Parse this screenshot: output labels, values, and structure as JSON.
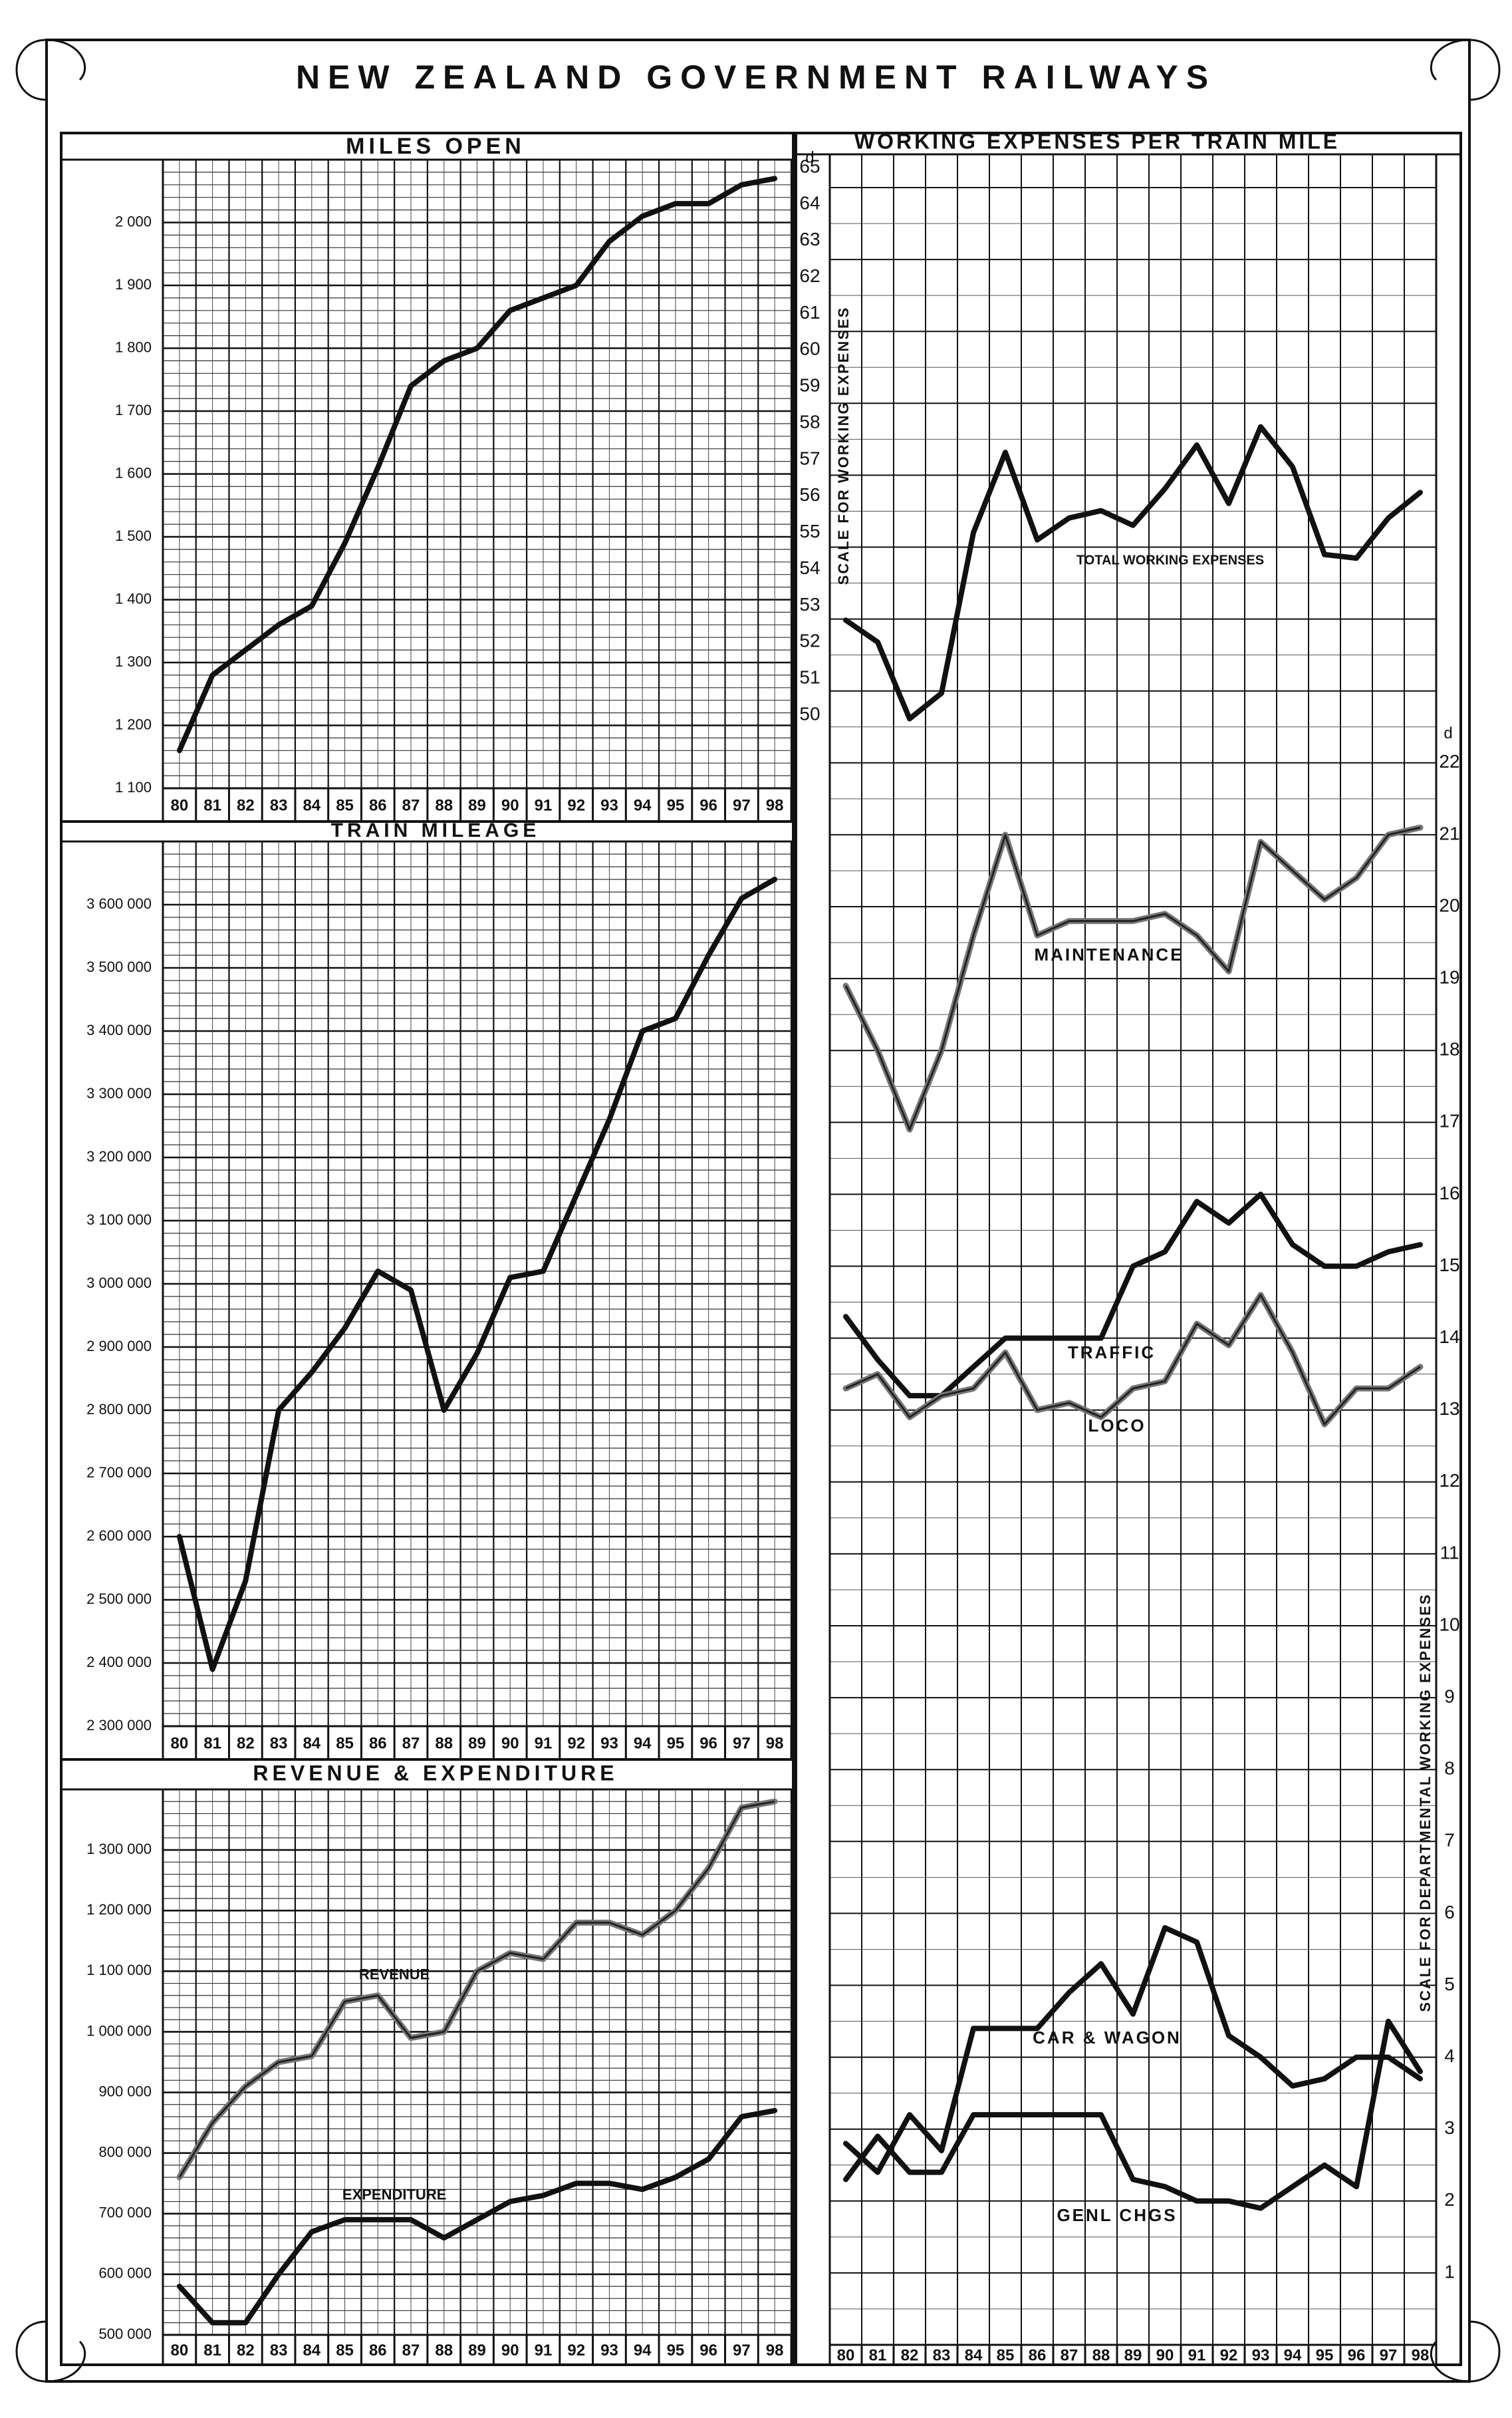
{
  "page_title": "NEW ZEALAND GOVERNMENT RAILWAYS",
  "years": [
    "80",
    "81",
    "82",
    "83",
    "84",
    "85",
    "86",
    "87",
    "88",
    "89",
    "90",
    "91",
    "92",
    "93",
    "94",
    "95",
    "96",
    "97",
    "98"
  ],
  "chart_data": [
    {
      "id": "miles_open",
      "type": "line",
      "title": "MILES OPEN",
      "ylim": [
        1100,
        2100
      ],
      "y_ticks": [
        1100,
        1200,
        1300,
        1400,
        1500,
        1600,
        1700,
        1800,
        1900,
        2000
      ],
      "y_tick_labels": [
        "1 100",
        "1 200",
        "1 300",
        "1 400",
        "1 500",
        "1 600",
        "1 700",
        "1 800",
        "1 900",
        "2 000"
      ],
      "series": [
        {
          "values": [
            1160,
            1280,
            1320,
            1360,
            1390,
            1490,
            1610,
            1740,
            1780,
            1800,
            1860,
            1880,
            1900,
            1970,
            2010,
            2030,
            2030,
            2060,
            2070
          ]
        }
      ]
    },
    {
      "id": "train_mileage",
      "type": "line",
      "title": "TRAIN MILEAGE",
      "ylim": [
        2300000,
        3700000
      ],
      "y_ticks": [
        2300000,
        2400000,
        2500000,
        2600000,
        2700000,
        2800000,
        2900000,
        3000000,
        3100000,
        3200000,
        3300000,
        3400000,
        3500000,
        3600000
      ],
      "y_tick_labels": [
        "2 300 000",
        "2 400 000",
        "2 500 000",
        "2 600 000",
        "2 700 000",
        "2 800 000",
        "2 900 000",
        "3 000 000",
        "3 100 000",
        "3 200 000",
        "3 300 000",
        "3 400 000",
        "3 500 000",
        "3 600 000"
      ],
      "series": [
        {
          "values": [
            2600000,
            2390000,
            2530000,
            2800000,
            2860000,
            2930000,
            3020000,
            2990000,
            2800000,
            2890000,
            3010000,
            3020000,
            3140000,
            3260000,
            3400000,
            3420000,
            3520000,
            3610000,
            3640000
          ]
        }
      ]
    },
    {
      "id": "revenue_expenditure",
      "type": "line",
      "title": "REVENUE & EXPENDITURE",
      "ylim": [
        500000,
        1400000
      ],
      "y_ticks": [
        500000,
        600000,
        700000,
        800000,
        900000,
        1000000,
        1100000,
        1200000,
        1300000
      ],
      "y_tick_labels": [
        "500 000",
        "600 000",
        "700 000",
        "800 000",
        "900 000",
        "1 000 000",
        "1 100 000",
        "1 200 000",
        "1 300 000"
      ],
      "series": [
        {
          "name": "REVENUE",
          "values": [
            760000,
            850000,
            910000,
            950000,
            960000,
            1050000,
            1060000,
            990000,
            1000000,
            1100000,
            1130000,
            1120000,
            1180000,
            1180000,
            1160000,
            1200000,
            1270000,
            1370000,
            1380000
          ]
        },
        {
          "name": "EXPENDITURE",
          "values": [
            580000,
            520000,
            520000,
            600000,
            670000,
            690000,
            690000,
            690000,
            660000,
            690000,
            720000,
            730000,
            750000,
            750000,
            740000,
            760000,
            790000,
            860000,
            870000
          ]
        }
      ]
    },
    {
      "id": "working_expenses_total",
      "type": "line",
      "title": "WORKING EXPENSES PER TRAIN MILE",
      "ylabel": "SCALE FOR WORKING EXPENSES",
      "unit_label": "d",
      "ylim": [
        50,
        65
      ],
      "y_ticks": [
        50,
        51,
        52,
        53,
        54,
        55,
        56,
        57,
        58,
        59,
        60,
        61,
        62,
        63,
        64,
        65
      ],
      "series": [
        {
          "name": "TOTAL WORKING EXPENSES",
          "values": [
            52.6,
            52.0,
            49.9,
            50.6,
            55.0,
            57.2,
            54.8,
            55.4,
            55.6,
            55.2,
            56.2,
            57.4,
            55.8,
            57.9,
            56.8,
            54.4,
            54.3,
            55.4,
            56.1
          ]
        }
      ]
    },
    {
      "id": "departmental_expenses",
      "type": "line",
      "ylabel": "SCALE FOR DEPARTMENTAL WORKING EXPENSES",
      "unit_label": "d",
      "ylim": [
        0,
        22
      ],
      "y_ticks": [
        1,
        2,
        3,
        4,
        5,
        6,
        7,
        8,
        9,
        10,
        11,
        12,
        13,
        14,
        15,
        16,
        17,
        18,
        19,
        20,
        21,
        22
      ],
      "series": [
        {
          "name": "MAINTENANCE",
          "values": [
            18.9,
            18.0,
            16.9,
            18.0,
            19.6,
            21.0,
            19.6,
            19.8,
            19.8,
            19.8,
            19.9,
            19.6,
            19.1,
            20.9,
            20.5,
            20.1,
            20.4,
            21.0,
            21.1
          ]
        },
        {
          "name": "TRAFFIC",
          "values": [
            14.3,
            13.7,
            13.2,
            13.2,
            13.6,
            14.0,
            14.0,
            14.0,
            14.0,
            15.0,
            15.2,
            15.9,
            15.6,
            16.0,
            15.3,
            15.0,
            15.0,
            15.2,
            15.3
          ]
        },
        {
          "name": "LOCO",
          "values": [
            13.3,
            13.5,
            12.9,
            13.2,
            13.3,
            13.8,
            13.0,
            13.1,
            12.9,
            13.3,
            13.4,
            14.2,
            13.9,
            14.6,
            13.8,
            12.8,
            13.3,
            13.3,
            13.6
          ]
        },
        {
          "name": "CAR & WAGON",
          "values": [
            2.8,
            2.4,
            3.2,
            2.7,
            4.4,
            4.4,
            4.4,
            4.9,
            5.3,
            4.6,
            5.8,
            5.6,
            4.3,
            4.0,
            3.6,
            3.7,
            4.0,
            4.0,
            3.7
          ]
        },
        {
          "name": "GENL CHGS",
          "values": [
            2.3,
            2.9,
            2.4,
            2.4,
            3.2,
            3.2,
            3.2,
            3.2,
            3.2,
            2.3,
            2.2,
            2.0,
            2.0,
            1.9,
            2.2,
            2.5,
            2.2,
            4.5,
            3.8
          ]
        }
      ]
    }
  ]
}
